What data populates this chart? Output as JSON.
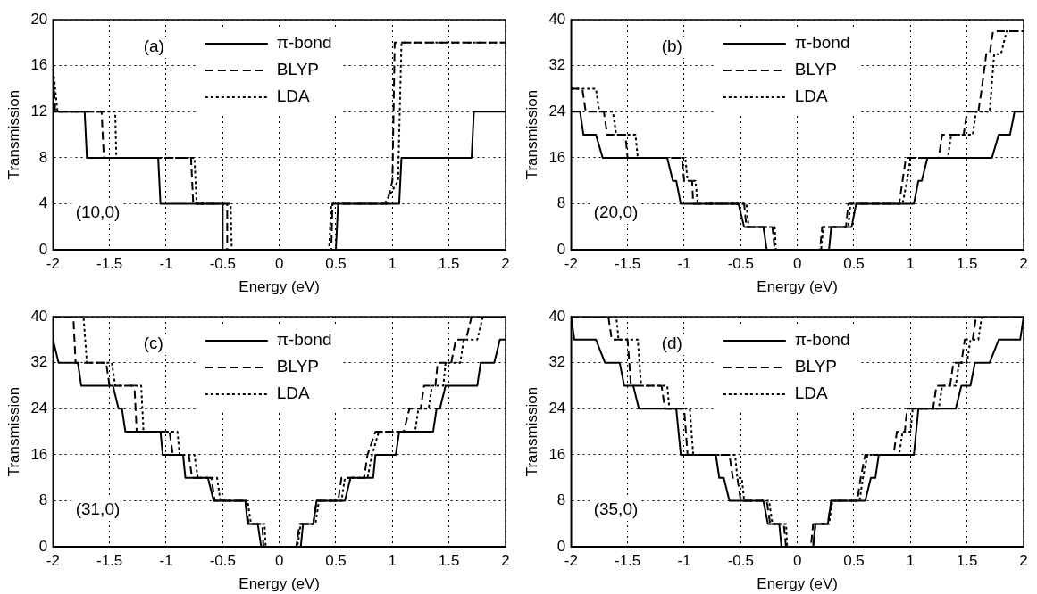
{
  "chart_data": [
    {
      "type": "line",
      "xlabel": "Energy (eV)",
      "ylabel": "Transmission",
      "xlim": [
        -2,
        2
      ],
      "xticks": [
        -2,
        -1.5,
        -1,
        -0.5,
        0,
        0.5,
        1,
        1.5,
        2
      ],
      "ylim": [
        0,
        20
      ],
      "yticks": [
        0,
        4,
        8,
        12,
        16,
        20
      ],
      "grid": true,
      "legend": "top",
      "annotations": [
        "(a)",
        "(10,0)"
      ],
      "series": [
        {
          "name": "π-bond",
          "color": "#000000",
          "line_style": "solid",
          "x": [
            -2,
            -1.72,
            -1.7,
            -1.07,
            -1.05,
            -0.5,
            -0.5,
            0.5,
            0.52,
            1.06,
            1.08,
            1.7,
            1.72,
            2
          ],
          "values": [
            12,
            12,
            8,
            8,
            4,
            4,
            0,
            0,
            4,
            4,
            8,
            8,
            12,
            12
          ]
        },
        {
          "name": "BLYP",
          "color": "#000000",
          "line_style": "dashed",
          "x": [
            -2,
            -1.98,
            -1.57,
            -1.55,
            -0.78,
            -0.76,
            -0.46,
            -0.46,
            0.46,
            0.47,
            0.95,
            1.0,
            1.02,
            2
          ],
          "values": [
            16,
            12,
            12,
            8,
            8,
            4,
            4,
            0,
            0,
            4,
            4,
            6,
            18,
            18
          ]
        },
        {
          "name": "LDA",
          "color": "#000000",
          "line_style": "dotted",
          "x": [
            -2,
            -1.96,
            -1.45,
            -1.44,
            -0.75,
            -0.73,
            -0.43,
            -0.42,
            0.44,
            0.46,
            0.93,
            1.05,
            1.08,
            2
          ],
          "values": [
            16,
            12,
            12,
            8,
            8,
            4,
            4,
            0,
            0,
            4,
            4,
            6,
            18,
            18
          ]
        }
      ]
    },
    {
      "type": "line",
      "xlabel": "Energy (eV)",
      "ylabel": "Transmission",
      "xlim": [
        -2,
        2
      ],
      "xticks": [
        -2,
        -1.5,
        -1,
        -0.5,
        0,
        0.5,
        1,
        1.5,
        2
      ],
      "ylim": [
        0,
        40
      ],
      "yticks": [
        0,
        8,
        16,
        24,
        32,
        40
      ],
      "grid": true,
      "legend": "top",
      "annotations": [
        "(b)",
        "(20,0)"
      ],
      "series": [
        {
          "name": "π-bond",
          "color": "#000000",
          "line_style": "solid",
          "x": [
            -2,
            -1.92,
            -1.89,
            -1.78,
            -1.72,
            -1.15,
            -1.1,
            -1.07,
            -1.03,
            -0.52,
            -0.47,
            -0.3,
            -0.27,
            0.28,
            0.3,
            0.48,
            0.52,
            1.03,
            1.07,
            1.1,
            1.15,
            1.72,
            1.78,
            1.88,
            1.92,
            2
          ],
          "values": [
            24,
            24,
            20,
            20,
            16,
            16,
            12,
            12,
            8,
            8,
            4,
            4,
            0,
            0,
            4,
            4,
            8,
            8,
            12,
            12,
            16,
            16,
            20,
            20,
            24,
            24
          ]
        },
        {
          "name": "BLYP",
          "color": "#000000",
          "line_style": "dashed",
          "x": [
            -2,
            -1.9,
            -1.87,
            -1.71,
            -1.68,
            -1.52,
            -1.5,
            -1.02,
            -1.0,
            -0.93,
            -0.92,
            -0.47,
            -0.45,
            -0.22,
            -0.2,
            0.2,
            0.22,
            0.43,
            0.45,
            0.9,
            0.93,
            0.96,
            1.25,
            1.28,
            1.47,
            1.5,
            1.6,
            1.63,
            1.67,
            1.7,
            1.73,
            2
          ],
          "values": [
            28,
            28,
            24,
            24,
            20,
            20,
            16,
            16,
            12,
            12,
            8,
            8,
            4,
            4,
            0,
            0,
            4,
            4,
            8,
            8,
            12,
            16,
            16,
            20,
            20,
            24,
            24,
            28,
            34,
            34,
            38,
            38
          ]
        },
        {
          "name": "LDA",
          "color": "#000000",
          "line_style": "dotted",
          "x": [
            -2,
            -1.78,
            -1.75,
            -1.63,
            -1.6,
            -1.43,
            -1.41,
            -0.99,
            -0.97,
            -0.9,
            -0.88,
            -0.45,
            -0.43,
            -0.2,
            -0.19,
            0.21,
            0.23,
            0.45,
            0.47,
            0.93,
            0.97,
            1.0,
            1.33,
            1.36,
            1.55,
            1.58,
            1.7,
            1.74,
            1.8,
            1.85,
            2
          ],
          "values": [
            28,
            28,
            24,
            24,
            20,
            20,
            16,
            16,
            12,
            12,
            8,
            8,
            4,
            4,
            0,
            0,
            4,
            4,
            8,
            8,
            12,
            16,
            16,
            20,
            20,
            24,
            24,
            34,
            34,
            38,
            38
          ]
        }
      ]
    },
    {
      "type": "line",
      "xlabel": "Energy (eV)",
      "ylabel": "Transmission",
      "xlim": [
        -2,
        2
      ],
      "xticks": [
        -2,
        -1.5,
        -1,
        -0.5,
        0,
        0.5,
        1,
        1.5,
        2
      ],
      "ylim": [
        0,
        40
      ],
      "yticks": [
        0,
        8,
        16,
        24,
        32,
        40
      ],
      "grid": true,
      "legend": "top",
      "annotations": [
        "(c)",
        "(31,0)"
      ],
      "series": [
        {
          "name": "π-bond",
          "color": "#000000",
          "line_style": "solid",
          "x": [
            -2,
            -1.95,
            -1.78,
            -1.75,
            -1.47,
            -1.42,
            -1.39,
            -1.36,
            -1.05,
            -1.03,
            -0.85,
            -0.83,
            -0.63,
            -0.58,
            -0.3,
            -0.28,
            -0.19,
            -0.16,
            0.19,
            0.21,
            0.3,
            0.33,
            0.58,
            0.63,
            0.83,
            0.85,
            1.03,
            1.06,
            1.36,
            1.39,
            1.42,
            1.47,
            1.75,
            1.78,
            1.9,
            1.95,
            2
          ],
          "values": [
            36,
            32,
            32,
            28,
            28,
            24,
            24,
            20,
            20,
            16,
            16,
            12,
            12,
            8,
            8,
            4,
            4,
            0,
            0,
            4,
            4,
            8,
            8,
            12,
            12,
            16,
            16,
            20,
            20,
            24,
            24,
            28,
            28,
            32,
            32,
            36,
            36
          ]
        },
        {
          "name": "BLYP",
          "color": "#000000",
          "line_style": "dashed",
          "x": [
            -2,
            -1.82,
            -1.8,
            -1.53,
            -1.5,
            -1.28,
            -1.26,
            -0.97,
            -0.94,
            -0.8,
            -0.77,
            -0.6,
            -0.57,
            -0.3,
            -0.27,
            -0.15,
            -0.14,
            0.15,
            0.18,
            0.3,
            0.33,
            0.52,
            0.55,
            0.75,
            0.78,
            0.85,
            1.1,
            1.15,
            1.25,
            1.28,
            1.38,
            1.4,
            1.52,
            1.56,
            1.65,
            1.7,
            2
          ],
          "values": [
            40,
            40,
            32,
            32,
            28,
            28,
            20,
            20,
            16,
            16,
            12,
            12,
            8,
            8,
            4,
            4,
            0,
            0,
            4,
            4,
            8,
            8,
            12,
            12,
            16,
            20,
            20,
            24,
            24,
            28,
            28,
            32,
            32,
            36,
            36,
            40,
            40
          ]
        },
        {
          "name": "LDA",
          "color": "#000000",
          "line_style": "dotted",
          "x": [
            -2,
            -1.73,
            -1.7,
            -1.48,
            -1.45,
            -1.22,
            -1.2,
            -0.9,
            -0.88,
            -0.75,
            -0.72,
            -0.55,
            -0.52,
            -0.28,
            -0.25,
            -0.13,
            -0.12,
            0.16,
            0.19,
            0.32,
            0.35,
            0.55,
            0.58,
            0.78,
            0.82,
            0.88,
            1.2,
            1.23,
            1.32,
            1.35,
            1.45,
            1.47,
            1.6,
            1.63,
            1.75,
            1.8,
            2
          ],
          "values": [
            40,
            40,
            32,
            32,
            28,
            28,
            20,
            20,
            16,
            16,
            12,
            12,
            8,
            8,
            4,
            4,
            0,
            0,
            4,
            4,
            8,
            8,
            12,
            12,
            16,
            20,
            20,
            24,
            24,
            28,
            28,
            32,
            32,
            36,
            36,
            40,
            40
          ]
        }
      ]
    },
    {
      "type": "line",
      "xlabel": "Energy (eV)",
      "ylabel": "Transmission",
      "xlim": [
        -2,
        2
      ],
      "xticks": [
        -2,
        -1.5,
        -1,
        -0.5,
        0,
        0.5,
        1,
        1.5,
        2
      ],
      "ylim": [
        0,
        40
      ],
      "yticks": [
        0,
        8,
        16,
        24,
        32,
        40
      ],
      "grid": true,
      "legend": "top",
      "annotations": [
        "(d)",
        "(35,0)"
      ],
      "series": [
        {
          "name": "π-bond",
          "color": "#000000",
          "line_style": "solid",
          "x": [
            -2,
            -1.97,
            -1.78,
            -1.7,
            -1.57,
            -1.53,
            -1.45,
            -1.4,
            -1.07,
            -1.03,
            -0.72,
            -0.69,
            -0.65,
            -0.6,
            -0.3,
            -0.26,
            -0.16,
            -0.14,
            0.14,
            0.16,
            0.27,
            0.3,
            0.6,
            0.65,
            0.69,
            0.72,
            1.03,
            1.07,
            1.4,
            1.45,
            1.53,
            1.57,
            1.7,
            1.78,
            1.97,
            2
          ],
          "values": [
            40,
            36,
            36,
            32,
            32,
            28,
            28,
            24,
            24,
            16,
            16,
            12,
            12,
            8,
            8,
            4,
            4,
            0,
            0,
            4,
            4,
            8,
            8,
            12,
            12,
            16,
            16,
            24,
            24,
            28,
            28,
            32,
            32,
            36,
            36,
            40
          ]
        },
        {
          "name": "BLYP",
          "color": "#000000",
          "line_style": "dashed",
          "x": [
            -2,
            -1.67,
            -1.64,
            -1.5,
            -1.47,
            -1.2,
            -1.17,
            -1.0,
            -0.97,
            -0.6,
            -0.57,
            -0.53,
            -0.5,
            -0.27,
            -0.24,
            -0.12,
            -0.1,
            0.12,
            0.14,
            0.27,
            0.3,
            0.53,
            0.56,
            0.6,
            0.85,
            0.88,
            0.95,
            0.97,
            1.2,
            1.23,
            1.35,
            1.38,
            1.45,
            1.48,
            1.55,
            1.58,
            2
          ],
          "values": [
            40,
            40,
            36,
            36,
            28,
            28,
            24,
            24,
            16,
            16,
            12,
            12,
            8,
            8,
            4,
            4,
            0,
            0,
            4,
            4,
            8,
            8,
            12,
            16,
            16,
            20,
            20,
            24,
            24,
            28,
            28,
            32,
            32,
            36,
            36,
            40,
            40
          ]
        },
        {
          "name": "LDA",
          "color": "#000000",
          "line_style": "dotted",
          "x": [
            -2,
            -1.6,
            -1.58,
            -1.41,
            -1.38,
            -1.15,
            -1.13,
            -0.95,
            -0.92,
            -0.55,
            -0.53,
            -0.49,
            -0.47,
            -0.25,
            -0.22,
            -0.1,
            -0.09,
            0.14,
            0.16,
            0.28,
            0.31,
            0.55,
            0.58,
            0.62,
            0.9,
            0.93,
            1.0,
            1.02,
            1.25,
            1.28,
            1.4,
            1.43,
            1.5,
            1.53,
            1.6,
            1.63,
            2
          ],
          "values": [
            40,
            40,
            36,
            36,
            28,
            28,
            24,
            24,
            16,
            16,
            12,
            12,
            8,
            8,
            4,
            4,
            0,
            0,
            4,
            4,
            8,
            8,
            12,
            16,
            16,
            20,
            20,
            24,
            24,
            28,
            28,
            32,
            32,
            36,
            36,
            40,
            40
          ]
        }
      ]
    }
  ]
}
